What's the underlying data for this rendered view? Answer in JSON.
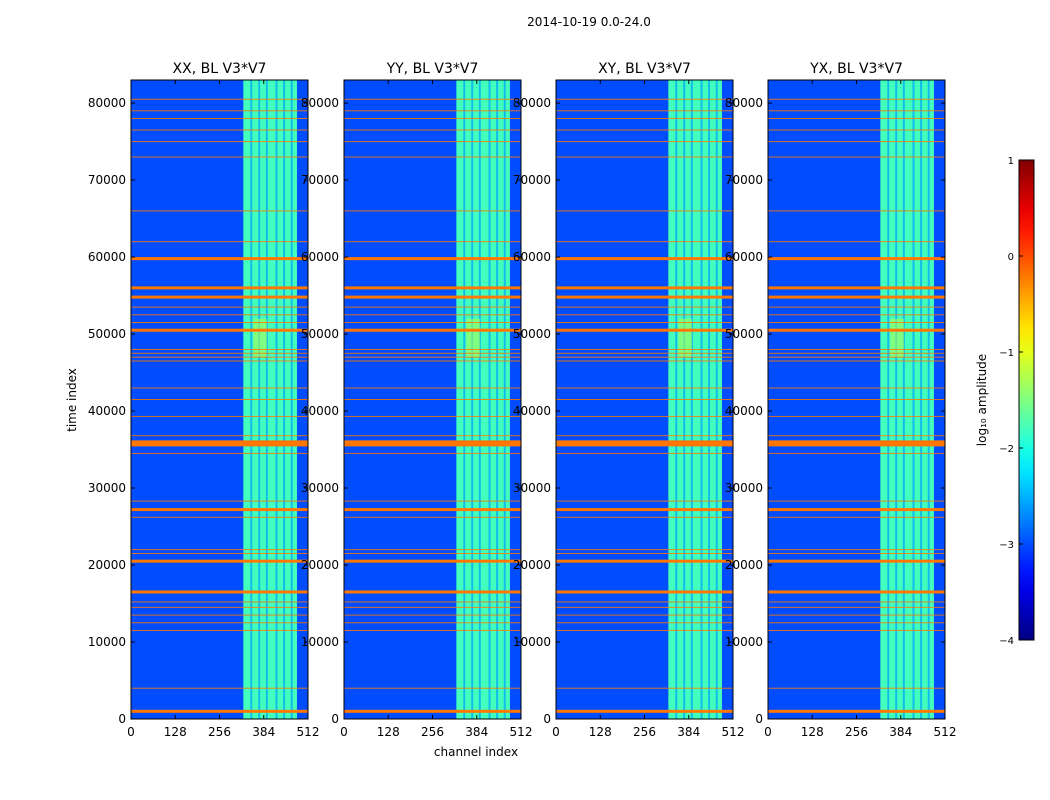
{
  "chart_data": {
    "type": "heatmap",
    "suptitle": "2014-10-19 0.0-24.0",
    "xlabel": "channel index",
    "ylabel": "time index",
    "xlim": [
      0,
      512
    ],
    "ylim": [
      0,
      83000
    ],
    "xticks": [
      0,
      128,
      256,
      384,
      512
    ],
    "yticks": [
      0,
      10000,
      20000,
      30000,
      40000,
      50000,
      60000,
      70000,
      80000
    ],
    "panels": [
      {
        "title": "XX, BL V3*V7"
      },
      {
        "title": "YY, BL V3*V7"
      },
      {
        "title": "XY, BL V3*V7"
      },
      {
        "title": "YX, BL V3*V7"
      }
    ],
    "colorbar": {
      "label": "log₁₀ amplitude",
      "min": -4,
      "max": 1,
      "ticks": [
        1,
        0,
        -1,
        -2,
        -3,
        -4
      ],
      "tick_labels": [
        "1",
        "0",
        "−1",
        "−2",
        "−3",
        "−4"
      ],
      "colormap": "jet"
    },
    "background_level": -3,
    "bright_band_channels": [
      325,
      480
    ],
    "bright_band_level": -1.8,
    "flagged_rows_thick": [
      1000,
      16500,
      20500,
      27200,
      35800,
      50500,
      54800,
      56000,
      59800
    ],
    "flagged_rows_thin": [
      4000,
      11500,
      12500,
      13500,
      14500,
      15200,
      21500,
      22000,
      26200,
      28300,
      34500,
      36800,
      39300,
      41500,
      43000,
      46500,
      47000,
      47500,
      48000,
      51500,
      52500,
      53500,
      62000,
      66000,
      73000,
      75000,
      76500,
      78000,
      79000,
      80500
    ],
    "colors": {
      "flag_line": "#ff7700",
      "background": "#1a3bff",
      "band": "#34c8ff"
    }
  }
}
